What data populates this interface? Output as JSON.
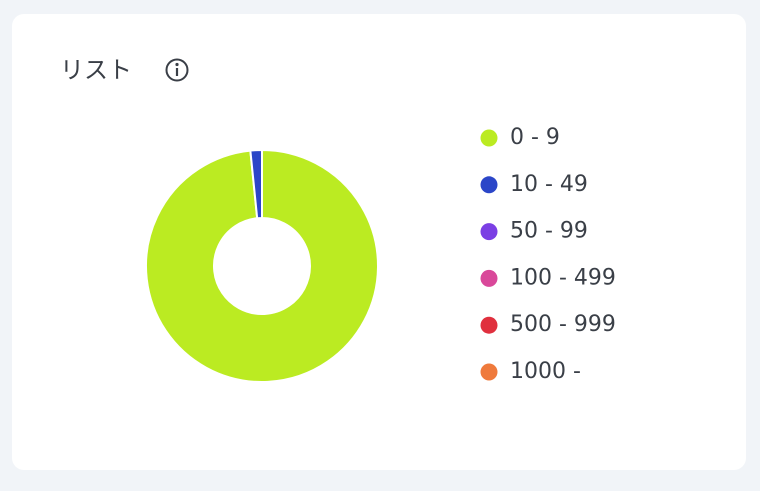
{
  "chart_data": {
    "type": "donut",
    "title": "リスト",
    "categories": [
      "0 - 9",
      "10 - 49",
      "50 - 99",
      "100 - 499",
      "500 - 999",
      "1000 -"
    ],
    "values": [
      98.4,
      1.6,
      0,
      0,
      0,
      0
    ],
    "colors": [
      "#bbeb22",
      "#2b46c8",
      "#7b3fe4",
      "#d9489a",
      "#e0303e",
      "#ef7a3c"
    ],
    "legend": "right"
  }
}
